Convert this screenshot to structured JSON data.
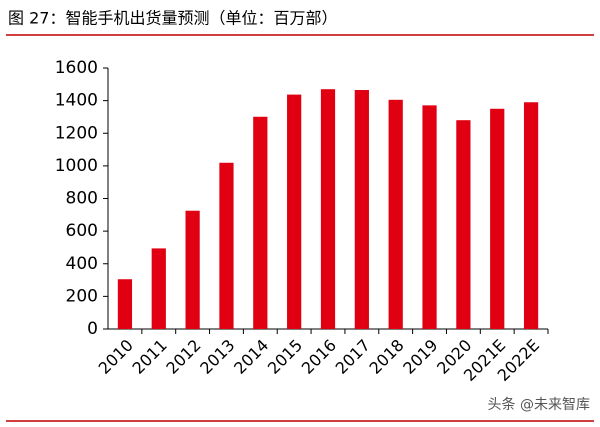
{
  "chart_data": {
    "type": "bar",
    "title": "图 27：智能手机出货量预测（单位：百万部）",
    "categories": [
      "2010",
      "2011",
      "2012",
      "2013",
      "2014",
      "2015",
      "2016",
      "2017",
      "2018",
      "2019",
      "2020",
      "2021E",
      "2022E"
    ],
    "values": [
      305,
      494,
      725,
      1019,
      1301,
      1437,
      1470,
      1465,
      1405,
      1371,
      1280,
      1350,
      1390
    ],
    "color": "#e00012",
    "ylim": [
      0,
      1600
    ],
    "yticks": [
      0,
      200,
      400,
      600,
      800,
      1000,
      1200,
      1400,
      1600
    ],
    "grid": false,
    "watermark": "头条 @未来智库"
  }
}
